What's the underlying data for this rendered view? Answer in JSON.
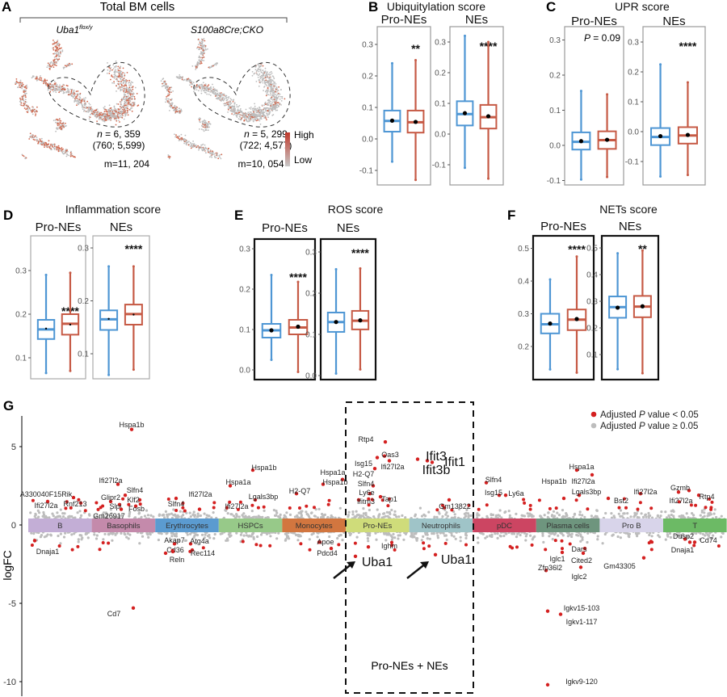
{
  "panel_letters": {
    "A": "A",
    "B": "B",
    "C": "C",
    "D": "D",
    "E": "E",
    "F": "F",
    "G": "G"
  },
  "panel_a": {
    "header": "Total BM cells",
    "left": {
      "title_main": "Uba1",
      "title_sup": "flox/y",
      "n_text": "n",
      "n_value": " = 6, 359",
      "split": "(760; 5,599)",
      "m": "m=11, 204"
    },
    "right": {
      "title": "S100a8Cre;CKO",
      "n_text": "n",
      "n_value": " = 5, 299",
      "split": "(722; 4,577)",
      "m": "m=10, 054"
    },
    "colorbar": {
      "high": "High",
      "low": "Low",
      "high_color": "#c0392b",
      "low_color": "#c8c8c8"
    }
  },
  "colors": {
    "ctrl": "#4e96d4",
    "cko": "#c65a45",
    "mean": "#000000",
    "sig_point": "#d42020",
    "nonsig_point": "#bdbdbd"
  },
  "chart_data": [
    {
      "type": "box",
      "panel": "B",
      "title": "Ubiquitylation score",
      "subplots": [
        {
          "subtitle": "Pro-NEs",
          "significance": "**",
          "yticks": [
            "0.3",
            "0.2",
            "0.1",
            "0.0",
            "-0.1"
          ],
          "boxes": [
            {
              "min": -0.072,
              "q1": 0.023,
              "median": 0.057,
              "q3": 0.09,
              "max": 0.24,
              "mean": 0.058
            },
            {
              "min": -0.13,
              "q1": 0.02,
              "median": 0.053,
              "q3": 0.09,
              "max": 0.25,
              "mean": 0.054
            }
          ]
        },
        {
          "subtitle": "NEs",
          "significance": "****",
          "yticks": [
            "0.3",
            "0.2",
            "0.1",
            "0.0",
            "-0.1"
          ],
          "boxes": [
            {
              "min": -0.11,
              "q1": 0.028,
              "median": 0.065,
              "q3": 0.107,
              "max": 0.32,
              "mean": 0.068
            },
            {
              "min": -0.145,
              "q1": 0.018,
              "median": 0.055,
              "q3": 0.095,
              "max": 0.3,
              "mean": 0.058
            }
          ]
        }
      ]
    },
    {
      "type": "box",
      "panel": "C",
      "title": "UPR score",
      "subplots": [
        {
          "subtitle": "Pro-NEs",
          "significance_prefix": "P",
          "significance": " = 0.09",
          "yticks": [
            "0.3",
            "0.2",
            "0.1",
            "0.0",
            "-0.1"
          ],
          "boxes": [
            {
              "min": -0.097,
              "q1": -0.012,
              "median": 0.01,
              "q3": 0.037,
              "max": 0.155,
              "mean": 0.012
            },
            {
              "min": -0.09,
              "q1": -0.01,
              "median": 0.015,
              "q3": 0.04,
              "max": 0.145,
              "mean": 0.016
            }
          ]
        },
        {
          "subtitle": "NEs",
          "significance": "****",
          "yticks": [
            "0.3",
            "0.2",
            "0.1",
            "0.0",
            "-0.1"
          ],
          "boxes": [
            {
              "min": -0.15,
              "q1": -0.045,
              "median": -0.018,
              "q3": 0.012,
              "max": 0.225,
              "mean": -0.015
            },
            {
              "min": -0.145,
              "q1": -0.04,
              "median": -0.013,
              "q3": 0.015,
              "max": 0.165,
              "mean": -0.011
            }
          ]
        }
      ]
    },
    {
      "type": "box",
      "panel": "D",
      "title": "Inflammation score",
      "subplots": [
        {
          "subtitle": "Pro-NEs",
          "significance": "****",
          "yticks": [
            "0.3",
            "0.2",
            "0.1"
          ],
          "boxes": [
            {
              "min": 0.065,
              "q1": 0.143,
              "median": 0.165,
              "q3": 0.187,
              "max": 0.29,
              "mean": 0.167
            },
            {
              "min": 0.07,
              "q1": 0.153,
              "median": 0.178,
              "q3": 0.2,
              "max": 0.295,
              "mean": 0.176
            }
          ]
        },
        {
          "subtitle": "NEs",
          "significance": "****",
          "yticks": [
            "0.3",
            "0.2",
            "0.1"
          ],
          "boxes": [
            {
              "min": 0.06,
              "q1": 0.145,
              "median": 0.165,
              "q3": 0.182,
              "max": 0.265,
              "mean": 0.166
            },
            {
              "min": 0.07,
              "q1": 0.155,
              "median": 0.175,
              "q3": 0.193,
              "max": 0.265,
              "mean": 0.174
            }
          ]
        }
      ]
    },
    {
      "type": "box",
      "panel": "E",
      "title": "ROS score",
      "subplots": [
        {
          "subtitle": "Pro-NEs",
          "significance": "****",
          "yticks": [
            "0.3",
            "0.2",
            "0.1",
            "0.0"
          ],
          "boxes": [
            {
              "min": 0.025,
              "q1": 0.08,
              "median": 0.098,
              "q3": 0.114,
              "max": 0.235,
              "mean": 0.098
            },
            {
              "min": -0.005,
              "q1": 0.088,
              "median": 0.105,
              "q3": 0.124,
              "max": 0.218,
              "mean": 0.107
            }
          ]
        },
        {
          "subtitle": "NEs",
          "significance": "****",
          "yticks": [
            "0.3",
            "0.2",
            "0.1",
            "0.0"
          ],
          "boxes": [
            {
              "min": 0.005,
              "q1": 0.106,
              "median": 0.13,
              "q3": 0.153,
              "max": 0.258,
              "mean": 0.13
            },
            {
              "min": 0.015,
              "q1": 0.112,
              "median": 0.133,
              "q3": 0.157,
              "max": 0.26,
              "mean": 0.134
            }
          ]
        }
      ]
    },
    {
      "type": "box",
      "panel": "F",
      "title": "NETs score",
      "subplots": [
        {
          "subtitle": "Pro-NEs",
          "significance": "****",
          "yticks": [
            "0.5",
            "0.4",
            "0.3",
            "0.2"
          ],
          "boxes": [
            {
              "min": 0.13,
              "q1": 0.24,
              "median": 0.268,
              "q3": 0.3,
              "max": 0.405,
              "mean": 0.27
            },
            {
              "min": 0.12,
              "q1": 0.25,
              "median": 0.282,
              "q3": 0.313,
              "max": 0.475,
              "mean": 0.284
            }
          ]
        },
        {
          "subtitle": "NEs",
          "significance": "**",
          "yticks": [
            "0.5",
            "0.4",
            "0.3",
            "0.2",
            "0.1"
          ],
          "boxes": [
            {
              "min": 0.045,
              "q1": 0.238,
              "median": 0.278,
              "q3": 0.318,
              "max": 0.48,
              "mean": 0.276
            },
            {
              "min": 0.03,
              "q1": 0.24,
              "median": 0.28,
              "q3": 0.32,
              "max": 0.49,
              "mean": 0.281
            }
          ]
        }
      ]
    },
    {
      "type": "scatter",
      "panel": "G",
      "ylabel": "logFC",
      "yticks": [
        "5",
        "0",
        "-5",
        "-10"
      ],
      "legend": {
        "placement": "top-right",
        "items": [
          {
            "pre": "Adjusted ",
            "p": "P",
            "post": " value < 0.05",
            "color": "#d42020"
          },
          {
            "pre": "Adjusted ",
            "p": "P",
            "post": " value ≥ 0.05",
            "color": "#bdbdbd"
          }
        ]
      },
      "highlight_box_label": "Pro-NEs + NEs",
      "clusters": [
        {
          "name": "B",
          "color": "#c3aed6"
        },
        {
          "name": "Basophils",
          "color": "#c48aab"
        },
        {
          "name": "Erythrocytes",
          "color": "#5b9bd0"
        },
        {
          "name": "HSPCs",
          "color": "#97c989"
        },
        {
          "name": "Monocytes",
          "color": "#d2763f"
        },
        {
          "name": "Pro-NEs",
          "color": "#cfdc7a"
        },
        {
          "name": "Neutrophils",
          "color": "#9fc4c8"
        },
        {
          "name": "pDC",
          "color": "#cc4562"
        },
        {
          "name": "Plasma cells",
          "color": "#6e957e"
        },
        {
          "name": "Pro B",
          "color": "#d8d4ea"
        },
        {
          "name": "T",
          "color": "#6cba65"
        }
      ],
      "genes": [
        {
          "gene": "Hspa1b",
          "cluster": "Basophils",
          "logFC": 6.1
        },
        {
          "gene": "A330040F15Rik",
          "cluster": "B",
          "logFC": 1.75
        },
        {
          "gene": "Ifi27l2a",
          "cluster": "B",
          "logFC": 1.5
        },
        {
          "gene": "Rnf213",
          "cluster": "B",
          "logFC": 1.4
        },
        {
          "gene": "Dnaja1",
          "cluster": "B",
          "logFC": -1.0
        },
        {
          "gene": "Ifi27l2a",
          "cluster": "Basophils",
          "logFC": 2.6
        },
        {
          "gene": "Glipr2",
          "cluster": "Basophils",
          "logFC": 1.5
        },
        {
          "gene": "Slfn4",
          "cluster": "Basophils",
          "logFC": 1.9
        },
        {
          "gene": "Klf2",
          "cluster": "Basophils",
          "logFC": 1.6
        },
        {
          "gene": "Slpi",
          "cluster": "Basophils",
          "logFC": 1.3
        },
        {
          "gene": "Fosb",
          "cluster": "Basophils",
          "logFC": 1.2
        },
        {
          "gene": "Gm26917",
          "cluster": "Basophils",
          "logFC": 1.0
        },
        {
          "gene": "Cd7",
          "cluster": "Basophils",
          "logFC": -5.3
        },
        {
          "gene": "Slfn4",
          "cluster": "Erythrocytes",
          "logFC": 1.7
        },
        {
          "gene": "Ifi27l2a",
          "cluster": "Erythrocytes",
          "logFC": 1.0
        },
        {
          "gene": "Akap7",
          "cluster": "Erythrocytes",
          "logFC": -1.2
        },
        {
          "gene": "Atg4a",
          "cluster": "Erythrocytes",
          "logFC": -1.2
        },
        {
          "gene": "Cd36",
          "cluster": "Erythrocytes",
          "logFC": -1.8
        },
        {
          "gene": "Reln",
          "cluster": "Erythrocytes",
          "logFC": -1.7
        },
        {
          "gene": "Rec114",
          "cluster": "Erythrocytes",
          "logFC": -1.6
        },
        {
          "gene": "Hspa1b",
          "cluster": "HSPCs",
          "logFC": 3.5
        },
        {
          "gene": "Hspa1a",
          "cluster": "HSPCs",
          "logFC": 2.5
        },
        {
          "gene": "Lgals3bp",
          "cluster": "HSPCs",
          "logFC": 1.6
        },
        {
          "gene": "Ifi27l2a",
          "cluster": "HSPCs",
          "logFC": 1.1
        },
        {
          "gene": "H2-Q7",
          "cluster": "Monocytes",
          "logFC": 2.0
        },
        {
          "gene": "Hspa1a",
          "cluster": "Monocytes",
          "logFC": 2.9
        },
        {
          "gene": "Hspa1b",
          "cluster": "Monocytes",
          "logFC": 2.6
        },
        {
          "gene": "Apoe",
          "cluster": "Monocytes",
          "logFC": -1.1
        },
        {
          "gene": "Pdcd4",
          "cluster": "Monocytes",
          "logFC": -1.5
        },
        {
          "gene": "Rtp4",
          "cluster": "Pro-NEs",
          "logFC": 5.3
        },
        {
          "gene": "Oas3",
          "cluster": "Pro-NEs",
          "logFC": 4.4
        },
        {
          "gene": "Isg15",
          "cluster": "Pro-NEs",
          "logFC": 4.3
        },
        {
          "gene": "Ifi27l2a",
          "cluster": "Pro-NEs",
          "logFC": 4.1
        },
        {
          "gene": "H2-Q7",
          "cluster": "Pro-NEs",
          "logFC": 3.6
        },
        {
          "gene": "Slfn4",
          "cluster": "Pro-NEs",
          "logFC": 2.5
        },
        {
          "gene": "Ly6e",
          "cluster": "Pro-NEs",
          "logFC": 2.0
        },
        {
          "gene": "Ifitm3",
          "cluster": "Pro-NEs",
          "logFC": 1.6
        },
        {
          "gene": "Tap1",
          "cluster": "Pro-NEs",
          "logFC": 1.8
        },
        {
          "gene": "Ighm",
          "cluster": "Pro-NEs",
          "logFC": -1.4
        },
        {
          "gene": "Uba1",
          "cluster": "Pro-NEs",
          "logFC": -2.0
        },
        {
          "gene": "Ifit3",
          "cluster": "Neutrophils",
          "logFC": 4.1
        },
        {
          "gene": "Ifit1",
          "cluster": "Neutrophils",
          "logFC": 4.0
        },
        {
          "gene": "Ifit3b",
          "cluster": "Neutrophils",
          "logFC": 4.2
        },
        {
          "gene": "Gm13822",
          "cluster": "Neutrophils",
          "logFC": 1.6
        },
        {
          "gene": "Uba1",
          "cluster": "Neutrophils",
          "logFC": -1.9
        },
        {
          "gene": "Slfn4",
          "cluster": "pDC",
          "logFC": 2.7
        },
        {
          "gene": "Isg15",
          "cluster": "pDC",
          "logFC": 1.9
        },
        {
          "gene": "Ly6a",
          "cluster": "pDC",
          "logFC": 1.9
        },
        {
          "gene": "Hspa1b",
          "cluster": "Plasma cells",
          "logFC": 1.7
        },
        {
          "gene": "Hspa1a",
          "cluster": "Plasma cells",
          "logFC": 3.5
        },
        {
          "gene": "Ifi27l2a",
          "cluster": "Plasma cells",
          "logFC": 3.2
        },
        {
          "gene": "Lgals3bp",
          "cluster": "Plasma cells",
          "logFC": 1.9
        },
        {
          "gene": "Dars",
          "cluster": "Plasma cells",
          "logFC": -1.5
        },
        {
          "gene": "Iglc1",
          "cluster": "Plasma cells",
          "logFC": -1.75
        },
        {
          "gene": "Cited2",
          "cluster": "Plasma cells",
          "logFC": -1.8
        },
        {
          "gene": "Zfp36l2",
          "cluster": "Plasma cells",
          "logFC": -2.9
        },
        {
          "gene": "Iglc2",
          "cluster": "Plasma cells",
          "logFC": -2.7
        },
        {
          "gene": "Igkv15-103",
          "cluster": "Plasma cells",
          "logFC": -5.5
        },
        {
          "gene": "Igkv1-117",
          "cluster": "Plasma cells",
          "logFC": -5.7
        },
        {
          "gene": "Igkv9-120",
          "cluster": "Plasma cells",
          "logFC": -10.2
        },
        {
          "gene": "Gm43305",
          "cluster": "Pro B",
          "logFC": -2.1
        },
        {
          "gene": "Bst2",
          "cluster": "Pro B",
          "logFC": 1.7
        },
        {
          "gene": "Ifi27l2a",
          "cluster": "Pro B",
          "logFC": 2.0
        },
        {
          "gene": "Gzmb",
          "cluster": "T",
          "logFC": 2.2
        },
        {
          "gene": "Ifi27l2a",
          "cluster": "T",
          "logFC": 2.1
        },
        {
          "gene": "Rtp4",
          "cluster": "T",
          "logFC": 1.9
        },
        {
          "gene": "Dusp2",
          "cluster": "T",
          "logFC": -0.9
        },
        {
          "gene": "Cd74",
          "cluster": "T",
          "logFC": -1.1
        },
        {
          "gene": "Dnaja1",
          "cluster": "T",
          "logFC": -1.1
        }
      ]
    }
  ]
}
